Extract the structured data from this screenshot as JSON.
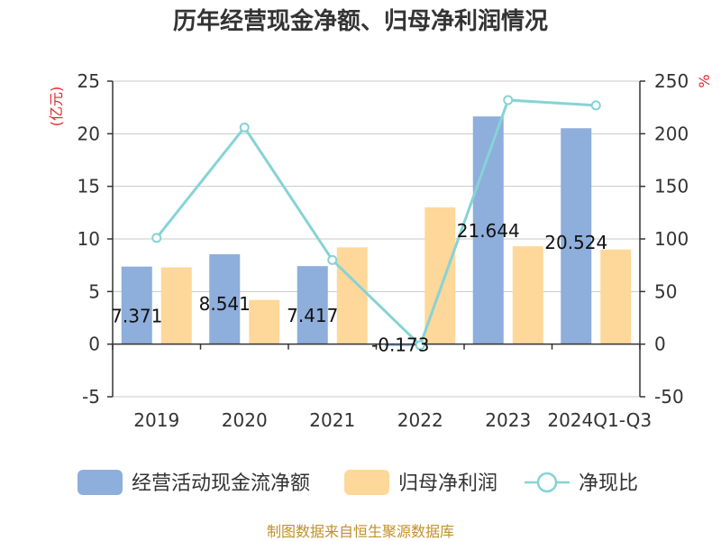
{
  "title": "历年经营现金净额、归母净利润情况",
  "source": "制图数据来自恒生聚源数据库",
  "colors": {
    "cash_flow": "#8eaedb",
    "net_profit": "#fdd89a",
    "ratio_line": "#86d3d6",
    "unit": "#e8262a",
    "source": "#c0902a",
    "grid": "#c8c8c8",
    "axis": "#333333"
  },
  "chart_data": {
    "type": "bar",
    "categories": [
      "2019",
      "2020",
      "2021",
      "2022",
      "2023",
      "2024Q1-Q3"
    ],
    "series": [
      {
        "name": "经营活动现金流净额",
        "type": "bar",
        "axis": "left",
        "values": [
          7.371,
          8.541,
          7.417,
          -0.173,
          21.644,
          20.524
        ]
      },
      {
        "name": "归母净利润",
        "type": "bar",
        "axis": "left",
        "values": [
          7.3,
          4.2,
          9.2,
          13.0,
          9.3,
          9.0
        ]
      },
      {
        "name": "净现比",
        "type": "line",
        "axis": "right",
        "values": [
          101,
          206,
          80,
          -1,
          232,
          227
        ]
      }
    ],
    "data_labels": [
      "7.371",
      "8.541",
      "7.417",
      "-0.173",
      "21.644",
      "20.524"
    ],
    "y_left": {
      "label": "(亿元)",
      "ylim": [
        -5,
        25
      ],
      "ticks": [
        "25",
        "20",
        "15",
        "10",
        "5",
        "0",
        "-5"
      ]
    },
    "y_right": {
      "label": "%",
      "ylim": [
        -50,
        250
      ],
      "ticks": [
        "250",
        "200",
        "150",
        "100",
        "50",
        "0",
        "-50"
      ]
    },
    "grid": true,
    "legend_position": "bottom"
  }
}
